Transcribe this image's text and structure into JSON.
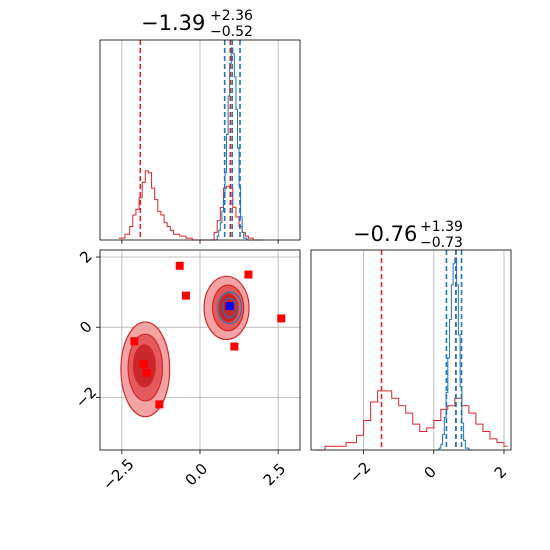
{
  "chart_data": {
    "type": "corner",
    "colors": {
      "primary": "#d62728",
      "secondary": "#1f77b4",
      "contour_fill": "#f4a3a5",
      "contour_mid": "#e45a5c",
      "contour_core": "#c9272b",
      "marker": "#ff0000",
      "truth_marker": "#0000ff",
      "grid": "#b0b0b0"
    },
    "parameters": [
      {
        "title_value": "−1.39",
        "title_plus": "+2.36",
        "title_minus": "−0.52",
        "range": [
          -3.2,
          3.2
        ],
        "ticks": [
          -2.5,
          0.0,
          2.5
        ],
        "tick_labels": [
          "−2.5",
          "0.0",
          "2.5"
        ],
        "quantile_lines_red": [
          -1.91,
          0.97
        ],
        "quantile_lines_blue": [
          0.79,
          1.03,
          1.28
        ]
      },
      {
        "title_value": "−0.76",
        "title_plus": "+1.39",
        "title_minus": "−0.73",
        "range": [
          -3.5,
          2.2
        ],
        "ticks": [
          -2,
          0,
          2
        ],
        "tick_labels": [
          "−2",
          "0",
          "2"
        ],
        "quantile_lines_red": [
          -1.49,
          0.63
        ],
        "quantile_lines_blue": [
          0.36,
          0.63,
          0.79
        ]
      }
    ],
    "hist_red_1": {
      "x": [
        -2.6,
        -2.4,
        -2.25,
        -2.15,
        -2.05,
        -1.95,
        -1.85,
        -1.75,
        -1.65,
        -1.55,
        -1.45,
        -1.35,
        -1.25,
        -1.15,
        -1.05,
        -0.95,
        -0.85,
        -0.75,
        -0.65,
        -0.55,
        -0.45,
        -0.35,
        -0.25,
        -0.15,
        0.1,
        0.45,
        0.55,
        0.65,
        0.75,
        0.85,
        0.95,
        1.05,
        1.15,
        1.25,
        1.35,
        1.45,
        1.55,
        1.7,
        1.9
      ],
      "y": [
        0.01,
        0.03,
        0.07,
        0.13,
        0.16,
        0.22,
        0.3,
        0.36,
        0.35,
        0.27,
        0.21,
        0.15,
        0.13,
        0.09,
        0.07,
        0.05,
        0.03,
        0.03,
        0.02,
        0.02,
        0.01,
        0.01,
        0.0,
        0.0,
        0.0,
        0.04,
        0.1,
        0.17,
        0.27,
        0.28,
        0.27,
        0.17,
        0.12,
        0.07,
        0.04,
        0.02,
        0.01,
        0.0,
        0.0
      ]
    },
    "hist_blue_1": {
      "x": [
        0.45,
        0.55,
        0.6,
        0.65,
        0.7,
        0.75,
        0.8,
        0.85,
        0.9,
        0.95,
        1.0,
        1.05,
        1.1,
        1.15,
        1.2,
        1.25,
        1.3,
        1.35,
        1.4,
        1.5
      ],
      "y": [
        0.0,
        0.02,
        0.05,
        0.09,
        0.15,
        0.22,
        0.35,
        0.55,
        0.75,
        0.92,
        1.0,
        0.97,
        0.85,
        0.68,
        0.48,
        0.28,
        0.12,
        0.04,
        0.01,
        0.0
      ]
    },
    "hist_red_2": {
      "x": [
        -3.4,
        -3.1,
        -2.8,
        -2.5,
        -2.2,
        -2.0,
        -1.8,
        -1.6,
        -1.4,
        -1.2,
        -1.0,
        -0.8,
        -0.6,
        -0.4,
        -0.2,
        0.0,
        0.2,
        0.4,
        0.6,
        0.8,
        1.0,
        1.2,
        1.4,
        1.6,
        1.8,
        2.0
      ],
      "y": [
        0.0,
        0.01,
        0.01,
        0.02,
        0.04,
        0.08,
        0.13,
        0.16,
        0.16,
        0.14,
        0.12,
        0.1,
        0.07,
        0.05,
        0.06,
        0.08,
        0.11,
        0.12,
        0.14,
        0.12,
        0.1,
        0.07,
        0.05,
        0.03,
        0.02,
        0.01
      ]
    },
    "hist_blue_2": {
      "x": [
        0.05,
        0.15,
        0.2,
        0.25,
        0.3,
        0.35,
        0.4,
        0.45,
        0.5,
        0.55,
        0.6,
        0.65,
        0.7,
        0.75,
        0.8,
        0.85,
        0.9,
        1.0
      ],
      "y": [
        0.0,
        0.01,
        0.03,
        0.08,
        0.17,
        0.3,
        0.48,
        0.68,
        0.86,
        0.97,
        1.0,
        0.86,
        0.6,
        0.33,
        0.14,
        0.05,
        0.01,
        0.0
      ]
    },
    "markers_red": [
      {
        "x": -2.1,
        "y": -0.4
      },
      {
        "x": -1.8,
        "y": -1.05
      },
      {
        "x": -1.7,
        "y": -1.3
      },
      {
        "x": -1.3,
        "y": -2.2
      },
      {
        "x": -0.65,
        "y": 1.75
      },
      {
        "x": -0.45,
        "y": 0.9
      },
      {
        "x": 0.9,
        "y": 0.6
      },
      {
        "x": 1.1,
        "y": -0.55
      },
      {
        "x": 1.55,
        "y": 1.5
      },
      {
        "x": 2.6,
        "y": 0.25
      }
    ],
    "marker_blue": {
      "x": 0.95,
      "y": 0.6
    },
    "panel2d": {
      "xlim": [
        -3.2,
        3.2
      ],
      "ylim": [
        -3.5,
        2.2
      ],
      "yticks": [
        -2,
        0,
        2
      ],
      "ytick_labels": [
        "−2",
        "0",
        "2"
      ]
    },
    "contours_red": [
      {
        "cx": -1.75,
        "cy": -1.2,
        "rx": 0.78,
        "ry": 1.35,
        "level": "outer"
      },
      {
        "cx": -1.75,
        "cy": -1.15,
        "rx": 0.55,
        "ry": 0.95,
        "level": "mid"
      },
      {
        "cx": -1.78,
        "cy": -1.1,
        "rx": 0.35,
        "ry": 0.6,
        "level": "core"
      },
      {
        "cx": 0.85,
        "cy": 0.55,
        "rx": 0.72,
        "ry": 0.9,
        "level": "outer"
      },
      {
        "cx": 0.9,
        "cy": 0.55,
        "rx": 0.5,
        "ry": 0.65,
        "level": "mid"
      },
      {
        "cx": 0.92,
        "cy": 0.55,
        "rx": 0.3,
        "ry": 0.4,
        "level": "core"
      }
    ],
    "contours_blue": [
      {
        "cx": 0.95,
        "cy": 0.55,
        "rx": 0.38,
        "ry": 0.45
      },
      {
        "cx": 0.95,
        "cy": 0.55,
        "rx": 0.22,
        "ry": 0.27
      }
    ]
  }
}
